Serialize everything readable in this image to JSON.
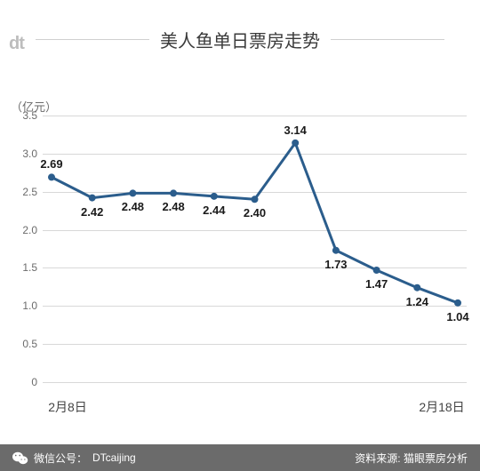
{
  "logo_text": "dt",
  "title": "美人鱼单日票房走势",
  "chart": {
    "type": "line",
    "y_unit": "（亿元）",
    "ylim": [
      0,
      3.5
    ],
    "ytick_step": 0.5,
    "y_ticks": [
      "0",
      "0.5",
      "1.0",
      "1.5",
      "2.0",
      "2.5",
      "3.0",
      "3.5"
    ],
    "x_labels_shown": {
      "first": "2月8日",
      "last": "2月18日"
    },
    "values": [
      2.69,
      2.42,
      2.48,
      2.48,
      2.44,
      2.4,
      3.14,
      1.73,
      1.47,
      1.24,
      1.04
    ],
    "label_positions": [
      "above",
      "below",
      "below",
      "below",
      "below",
      "below",
      "above",
      "below",
      "below",
      "below",
      "below"
    ],
    "line_color": "#2b5d8c",
    "line_width": 3,
    "marker_color": "#2b5d8c",
    "marker_size": 4,
    "background_color": "#ffffff",
    "grid_color": "#d8d8d8",
    "axis_color": "#d8d8d8",
    "label_fontsize": 13,
    "tick_fontsize": 12,
    "title_fontsize": 20
  },
  "footer": {
    "wechat_label": "微信公号：",
    "wechat_account": "DTcaijing",
    "source_label": "资料来源:",
    "source_value": "猫眼票房分析"
  }
}
